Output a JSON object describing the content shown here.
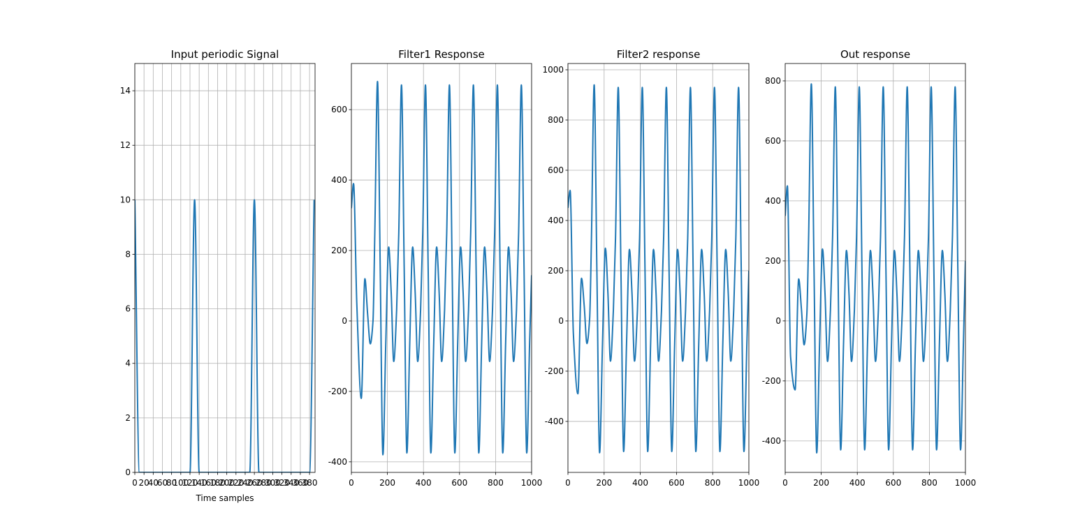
{
  "chart_data": [
    {
      "type": "line",
      "title": "Input periodic Signal",
      "xlabel": "Time samples",
      "color": "#1f77b4",
      "grid": true,
      "x": [
        0,
        10,
        20,
        30,
        40,
        50,
        60,
        70,
        80,
        90,
        100,
        110,
        120,
        130,
        140,
        150,
        160,
        170,
        180,
        190,
        200,
        210,
        220,
        230,
        240,
        250,
        260,
        270,
        280,
        290,
        300,
        310,
        320,
        330,
        340,
        350,
        360,
        370,
        380,
        390
      ],
      "values": [
        10,
        0,
        0,
        0,
        0,
        0,
        0,
        0,
        0,
        0,
        0,
        0,
        0,
        10,
        0,
        0,
        0,
        0,
        0,
        0,
        0,
        0,
        0,
        0,
        0,
        0,
        10,
        0,
        0,
        0,
        0,
        0,
        0,
        0,
        0,
        0,
        0,
        0,
        0,
        10
      ],
      "xlim": [
        0,
        392
      ],
      "ylim": [
        0,
        15
      ],
      "xticks": [
        0,
        20,
        40,
        60,
        80,
        100,
        120,
        140,
        160,
        180,
        200,
        220,
        240,
        260,
        280,
        300,
        320,
        340,
        360,
        380
      ],
      "yticks": [
        0,
        2,
        4,
        6,
        8,
        10,
        12,
        14
      ]
    },
    {
      "type": "line",
      "title": "Filter1 Response",
      "color": "#1f77b4",
      "grid": true,
      "x": [
        0,
        12,
        30,
        55,
        75,
        90,
        105,
        120,
        130,
        145,
        160,
        175,
        191,
        207,
        221,
        235,
        251,
        263,
        278,
        293,
        308,
        324,
        340,
        354,
        368,
        384,
        396,
        411,
        426,
        441,
        457,
        473,
        487,
        501,
        517,
        529,
        544,
        559,
        574,
        590,
        606,
        620,
        634,
        650,
        662,
        677,
        692,
        707,
        723,
        739,
        753,
        767,
        783,
        795,
        810,
        825,
        840,
        856,
        872,
        886,
        900,
        916,
        928,
        943,
        958,
        973,
        989,
        1000
      ],
      "values": [
        320,
        390,
        50,
        -220,
        120,
        20,
        -65,
        0,
        250,
        680,
        150,
        -380,
        -60,
        210,
        80,
        -115,
        30,
        250,
        670,
        150,
        -375,
        -60,
        210,
        80,
        -115,
        30,
        250,
        670,
        150,
        -375,
        -60,
        210,
        80,
        -115,
        30,
        250,
        670,
        150,
        -375,
        -60,
        210,
        80,
        -115,
        30,
        250,
        670,
        150,
        -375,
        -60,
        210,
        80,
        -115,
        30,
        250,
        670,
        150,
        -375,
        -60,
        210,
        80,
        -115,
        30,
        250,
        670,
        150,
        -375,
        -60,
        130
      ],
      "xlim": [
        0,
        1000
      ],
      "ylim": [
        -430,
        731
      ],
      "xticks": [
        0,
        200,
        400,
        600,
        800,
        1000
      ],
      "yticks": [
        -400,
        -200,
        0,
        200,
        400,
        600
      ]
    },
    {
      "type": "line",
      "title": "Filter2 response",
      "color": "#1f77b4",
      "grid": true,
      "x": [
        0,
        12,
        30,
        55,
        75,
        90,
        105,
        120,
        130,
        145,
        160,
        175,
        191,
        207,
        221,
        235,
        251,
        263,
        278,
        293,
        308,
        324,
        340,
        354,
        368,
        384,
        396,
        411,
        426,
        441,
        457,
        473,
        487,
        501,
        517,
        529,
        544,
        559,
        574,
        590,
        606,
        620,
        634,
        650,
        662,
        677,
        692,
        707,
        723,
        739,
        753,
        767,
        783,
        795,
        810,
        825,
        840,
        856,
        872,
        886,
        900,
        916,
        928,
        943,
        958,
        973,
        989,
        1000
      ],
      "values": [
        450,
        520,
        -50,
        -290,
        170,
        60,
        -90,
        10,
        330,
        940,
        200,
        -525,
        -90,
        290,
        110,
        -160,
        40,
        330,
        930,
        200,
        -520,
        -90,
        285,
        110,
        -160,
        40,
        330,
        930,
        200,
        -520,
        -90,
        285,
        110,
        -160,
        40,
        330,
        930,
        200,
        -520,
        -90,
        285,
        110,
        -160,
        40,
        330,
        930,
        200,
        -520,
        -90,
        285,
        110,
        -160,
        40,
        330,
        930,
        200,
        -520,
        -90,
        285,
        110,
        -160,
        40,
        330,
        930,
        200,
        -520,
        -90,
        200
      ],
      "xlim": [
        0,
        1000
      ],
      "ylim": [
        -603,
        1025
      ],
      "xticks": [
        0,
        200,
        400,
        600,
        800,
        1000
      ],
      "yticks": [
        -400,
        -200,
        0,
        200,
        400,
        600,
        800,
        1000
      ]
    },
    {
      "type": "line",
      "title": "Out response",
      "color": "#1f77b4",
      "grid": true,
      "x": [
        0,
        12,
        30,
        55,
        75,
        90,
        105,
        120,
        130,
        145,
        160,
        175,
        191,
        207,
        221,
        235,
        251,
        263,
        278,
        293,
        308,
        324,
        340,
        354,
        368,
        384,
        396,
        411,
        426,
        441,
        457,
        473,
        487,
        501,
        517,
        529,
        544,
        559,
        574,
        590,
        606,
        620,
        634,
        650,
        662,
        677,
        692,
        707,
        723,
        739,
        753,
        767,
        783,
        795,
        810,
        825,
        840,
        856,
        872,
        886,
        900,
        916,
        928,
        943,
        958,
        973,
        989,
        1000
      ],
      "values": [
        350,
        450,
        -120,
        -230,
        140,
        40,
        -80,
        20,
        280,
        790,
        170,
        -440,
        -70,
        240,
        90,
        -135,
        35,
        280,
        780,
        170,
        -430,
        -70,
        235,
        90,
        -135,
        35,
        280,
        780,
        170,
        -430,
        -70,
        235,
        90,
        -135,
        35,
        280,
        780,
        170,
        -430,
        -70,
        235,
        90,
        -135,
        35,
        280,
        780,
        170,
        -430,
        -70,
        235,
        90,
        -135,
        35,
        280,
        780,
        170,
        -430,
        -70,
        235,
        90,
        -135,
        35,
        280,
        780,
        170,
        -430,
        -70,
        200
      ],
      "xlim": [
        0,
        1000
      ],
      "ylim": [
        -505,
        858
      ],
      "xticks": [
        0,
        200,
        400,
        600,
        800,
        1000
      ],
      "yticks": [
        -400,
        -200,
        0,
        200,
        400,
        600,
        800
      ]
    }
  ]
}
